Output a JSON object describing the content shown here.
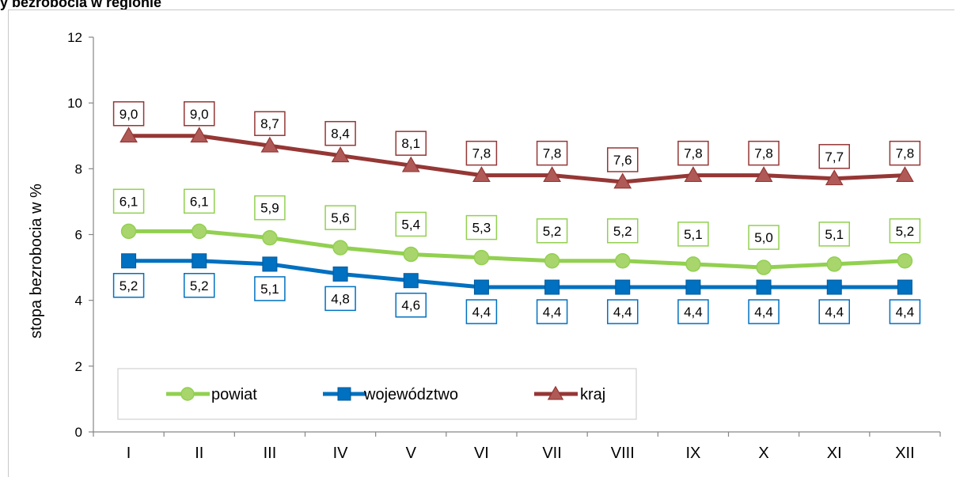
{
  "header": {
    "text": "y  bezrobocia  w  regionie"
  },
  "chart_data": {
    "type": "line",
    "title": "",
    "xlabel": "",
    "ylabel": "stopa bezrobocia w %",
    "categories": [
      "I",
      "II",
      "III",
      "IV",
      "V",
      "VI",
      "VII",
      "VIII",
      "IX",
      "X",
      "XI",
      "XII"
    ],
    "ylim": [
      0,
      12
    ],
    "yticks": [
      0,
      2,
      4,
      6,
      8,
      10,
      12
    ],
    "grid": false,
    "legend": "bottom-left",
    "series": [
      {
        "name": "powiat",
        "color": "#92d050",
        "marker": "circle",
        "values": [
          6.1,
          6.1,
          5.9,
          5.6,
          5.4,
          5.3,
          5.2,
          5.2,
          5.1,
          5.0,
          5.1,
          5.2
        ],
        "labels": [
          "6,1",
          "6,1",
          "5,9",
          "5,6",
          "5,4",
          "5,3",
          "5,2",
          "5,2",
          "5,1",
          "5,0",
          "5,1",
          "5,2"
        ]
      },
      {
        "name": "województwo",
        "color": "#0070c0",
        "marker": "square",
        "values": [
          5.2,
          5.2,
          5.1,
          4.8,
          4.6,
          4.4,
          4.4,
          4.4,
          4.4,
          4.4,
          4.4,
          4.4
        ],
        "labels": [
          "5,2",
          "5,2",
          "5,1",
          "4,8",
          "4,6",
          "4,4",
          "4,4",
          "4,4",
          "4,4",
          "4,4",
          "4,4",
          "4,4"
        ]
      },
      {
        "name": "kraj",
        "color": "#953735",
        "marker": "triangle",
        "values": [
          9.0,
          9.0,
          8.7,
          8.4,
          8.1,
          7.8,
          7.8,
          7.6,
          7.8,
          7.8,
          7.7,
          7.8
        ],
        "labels": [
          "9,0",
          "9,0",
          "8,7",
          "8,4",
          "8,1",
          "7,8",
          "7,8",
          "7,6",
          "7,8",
          "7,8",
          "7,7",
          "7,8"
        ]
      }
    ]
  }
}
